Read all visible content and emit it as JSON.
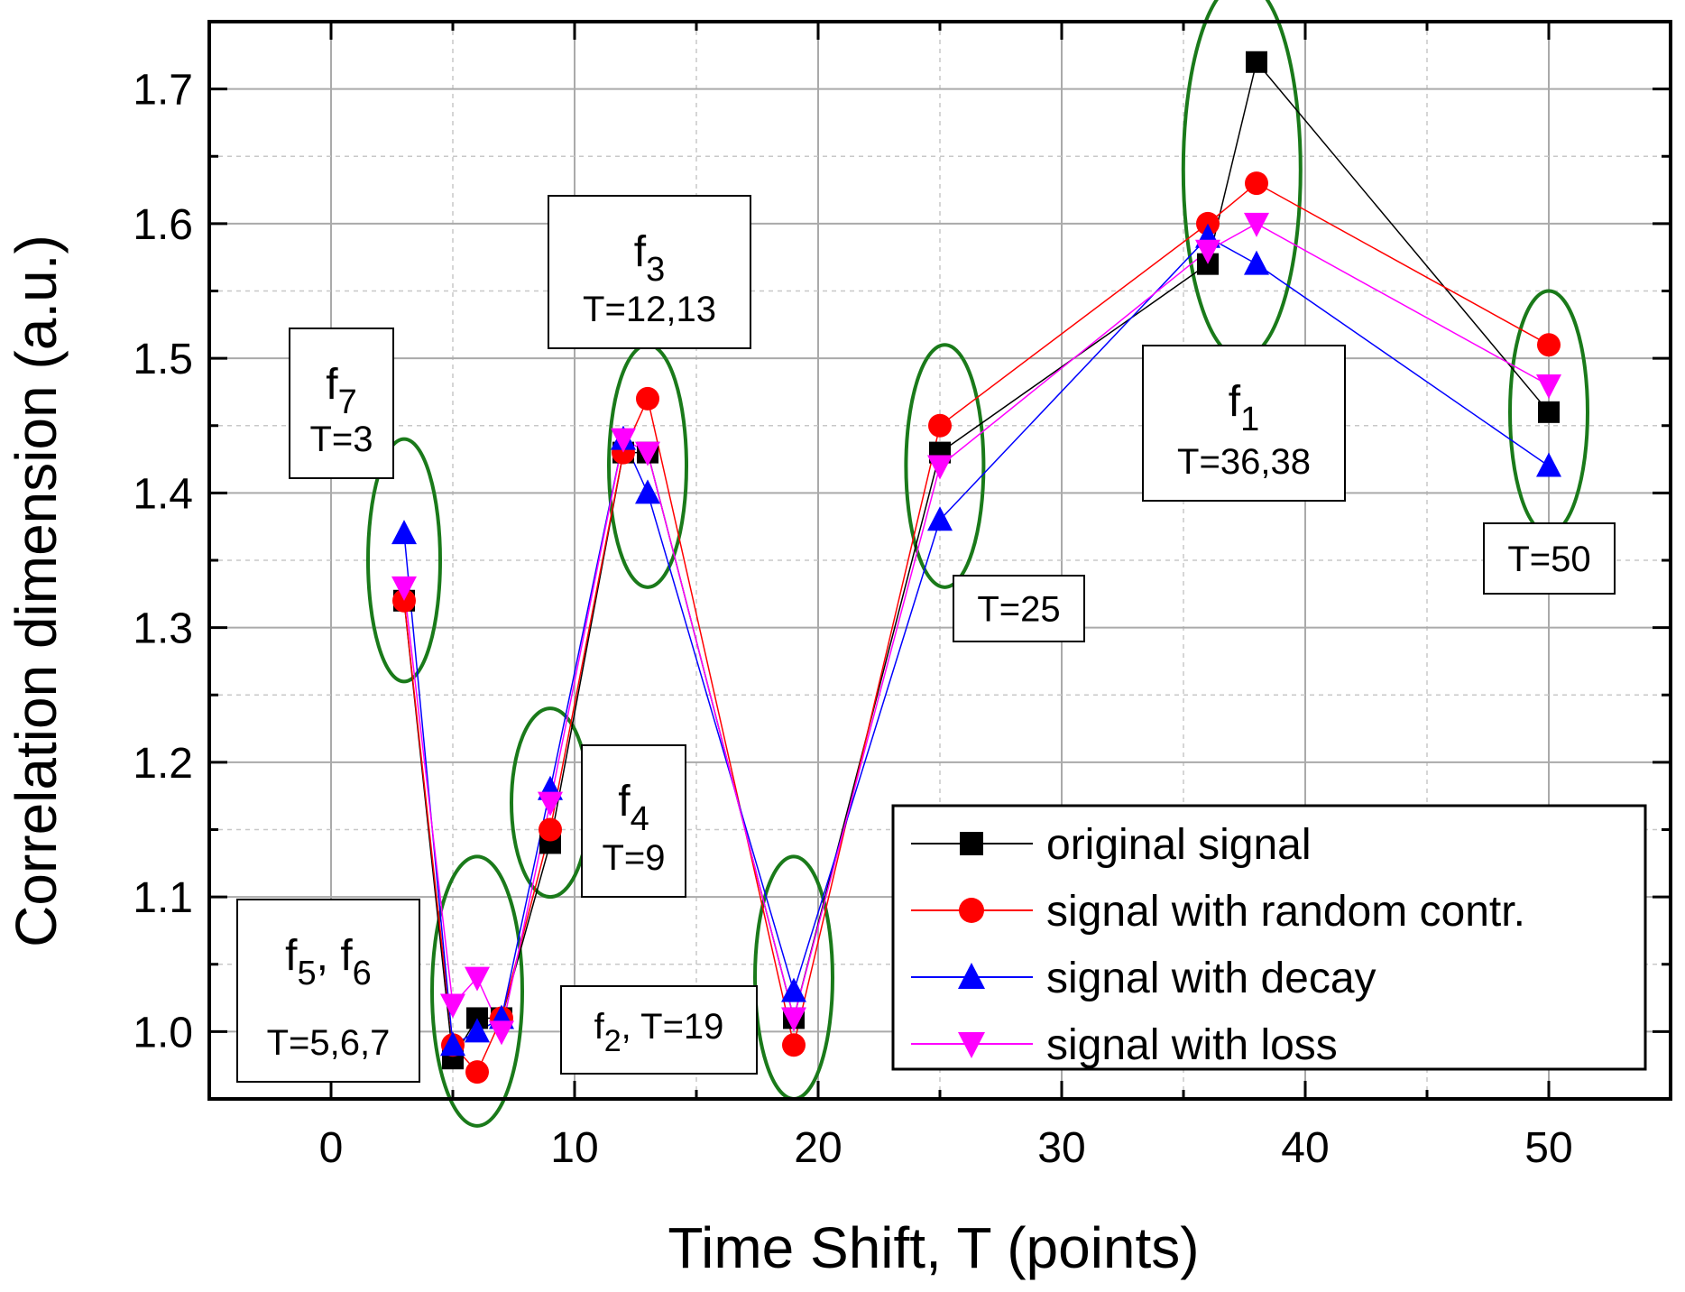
{
  "chart_data": {
    "type": "line",
    "xlabel": "Time Shift, T (points)",
    "ylabel": "Correlation dimension (a.u.)",
    "xlim": [
      -5,
      55
    ],
    "ylim": [
      0.95,
      1.75
    ],
    "xticks": [
      0,
      10,
      20,
      30,
      40,
      50
    ],
    "xtick_labels": [
      "0",
      "10",
      "20",
      "30",
      "40",
      "50"
    ],
    "yticks": [
      1.0,
      1.1,
      1.2,
      1.3,
      1.4,
      1.5,
      1.6,
      1.7
    ],
    "ytick_labels": [
      "1.0",
      "1.1",
      "1.2",
      "1.3",
      "1.4",
      "1.5",
      "1.6",
      "1.7"
    ],
    "grid": true,
    "legend_position": "bottom-right",
    "x": [
      3,
      5,
      6,
      7,
      9,
      12,
      13,
      19,
      25,
      36,
      38,
      50
    ],
    "series": [
      {
        "name": "original signal",
        "color": "#000000",
        "marker": "square",
        "values": [
          1.32,
          0.98,
          1.01,
          1.01,
          1.14,
          1.43,
          1.43,
          1.01,
          1.43,
          1.57,
          1.72,
          1.46
        ]
      },
      {
        "name": "signal with random contr.",
        "color": "#ff0000",
        "marker": "circle",
        "values": [
          1.32,
          0.99,
          0.97,
          1.01,
          1.15,
          1.43,
          1.47,
          0.99,
          1.45,
          1.6,
          1.63,
          1.51
        ]
      },
      {
        "name": "signal with decay",
        "color": "#0000ff",
        "marker": "triangle-up",
        "values": [
          1.37,
          0.99,
          1.0,
          1.01,
          1.18,
          1.44,
          1.4,
          1.03,
          1.38,
          1.59,
          1.57,
          1.42
        ]
      },
      {
        "name": "signal with loss",
        "color": "#ff00ff",
        "marker": "triangle-down",
        "values": [
          1.33,
          1.02,
          1.04,
          1.0,
          1.17,
          1.44,
          1.43,
          1.01,
          1.42,
          1.58,
          1.6,
          1.48
        ]
      }
    ],
    "ellipse_color": "#1a7a1a",
    "annotations": [
      {
        "id": "f7",
        "base": "f",
        "sub": "7",
        "sep": "",
        "base2": "",
        "sub2": "",
        "text": "T=3"
      },
      {
        "id": "f3",
        "base": "f",
        "sub": "3",
        "sep": "",
        "base2": "",
        "sub2": "",
        "text": "T=12,13"
      },
      {
        "id": "f1",
        "base": "f",
        "sub": "1",
        "sep": "",
        "base2": "",
        "sub2": "",
        "text": "T=36,38"
      },
      {
        "id": "f4",
        "base": "f",
        "sub": "4",
        "sep": "",
        "base2": "",
        "sub2": "",
        "text": "T=9"
      },
      {
        "id": "f56",
        "base": "f",
        "sub": "5",
        "sep": ",",
        "base2": "f",
        "sub2": "6",
        "text": "T=5,6,7"
      },
      {
        "id": "f2",
        "base": "f",
        "sub": "2",
        "sep": ",",
        "base2": "",
        "sub2": "",
        "text": "T=19"
      },
      {
        "id": "t25",
        "base": "",
        "sub": "",
        "sep": "",
        "base2": "",
        "sub2": "",
        "text": "T=25"
      },
      {
        "id": "t50",
        "base": "",
        "sub": "",
        "sep": "",
        "base2": "",
        "sub2": "",
        "text": "T=50"
      }
    ]
  }
}
